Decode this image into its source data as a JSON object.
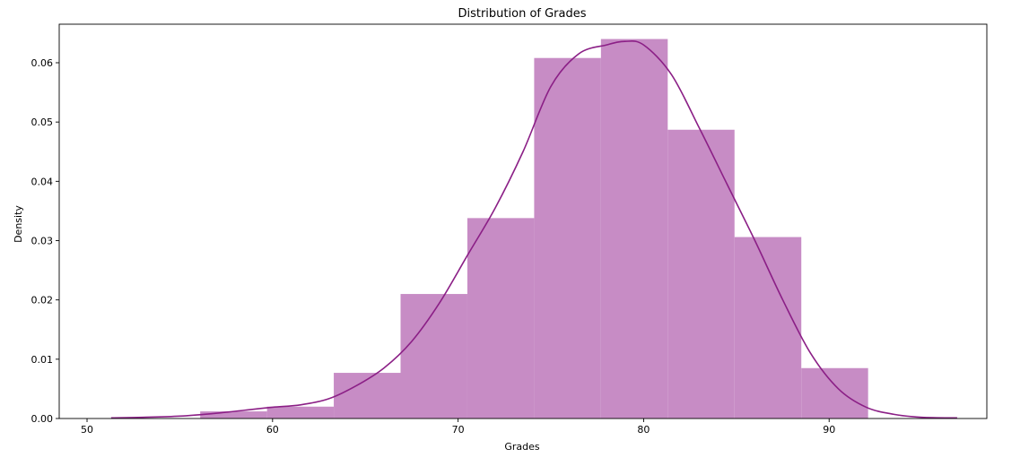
{
  "chart_data": {
    "type": "bar",
    "title": "Distribution of Grades",
    "xlabel": "Grades",
    "ylabel": "Density",
    "xlim": [
      48.5,
      98.5
    ],
    "ylim": [
      0,
      0.0665
    ],
    "xticks": [
      50,
      60,
      70,
      80,
      90
    ],
    "yticks": [
      0.0,
      0.01,
      0.02,
      0.03,
      0.04,
      0.05,
      0.06
    ],
    "ytick_labels": [
      "0.00",
      "0.01",
      "0.02",
      "0.03",
      "0.04",
      "0.05",
      "0.06"
    ],
    "grid": false,
    "bar_color": "#c78cc5",
    "line_color": "#8b1f86",
    "bins": [
      {
        "x0": 56.1,
        "x1": 59.7,
        "value": 0.0012
      },
      {
        "x0": 59.7,
        "x1": 63.3,
        "value": 0.002
      },
      {
        "x0": 63.3,
        "x1": 66.9,
        "value": 0.0077
      },
      {
        "x0": 66.9,
        "x1": 70.5,
        "value": 0.021
      },
      {
        "x0": 70.5,
        "x1": 74.1,
        "value": 0.0338
      },
      {
        "x0": 74.1,
        "x1": 77.7,
        "value": 0.0608
      },
      {
        "x0": 77.7,
        "x1": 81.3,
        "value": 0.064
      },
      {
        "x0": 81.3,
        "x1": 84.9,
        "value": 0.0487
      },
      {
        "x0": 84.9,
        "x1": 88.5,
        "value": 0.0306
      },
      {
        "x0": 88.5,
        "x1": 92.1,
        "value": 0.0085
      }
    ],
    "kde": {
      "x": [
        51.3,
        53,
        55,
        57,
        58.5,
        60,
        61.5,
        63,
        64.5,
        66,
        67.5,
        69,
        70.5,
        72,
        73.5,
        75,
        76.5,
        78,
        79,
        80,
        81.5,
        83,
        84.5,
        86,
        87.5,
        89,
        90.5,
        92,
        93.5,
        95,
        96.9
      ],
      "y": [
        0.0001,
        0.0002,
        0.0004,
        0.0009,
        0.0014,
        0.0019,
        0.0023,
        0.0033,
        0.0055,
        0.0085,
        0.013,
        0.0195,
        0.0275,
        0.0355,
        0.045,
        0.056,
        0.0615,
        0.063,
        0.0636,
        0.063,
        0.058,
        0.049,
        0.0395,
        0.03,
        0.02,
        0.011,
        0.005,
        0.0019,
        0.0007,
        0.0002,
        0.0001
      ]
    }
  }
}
